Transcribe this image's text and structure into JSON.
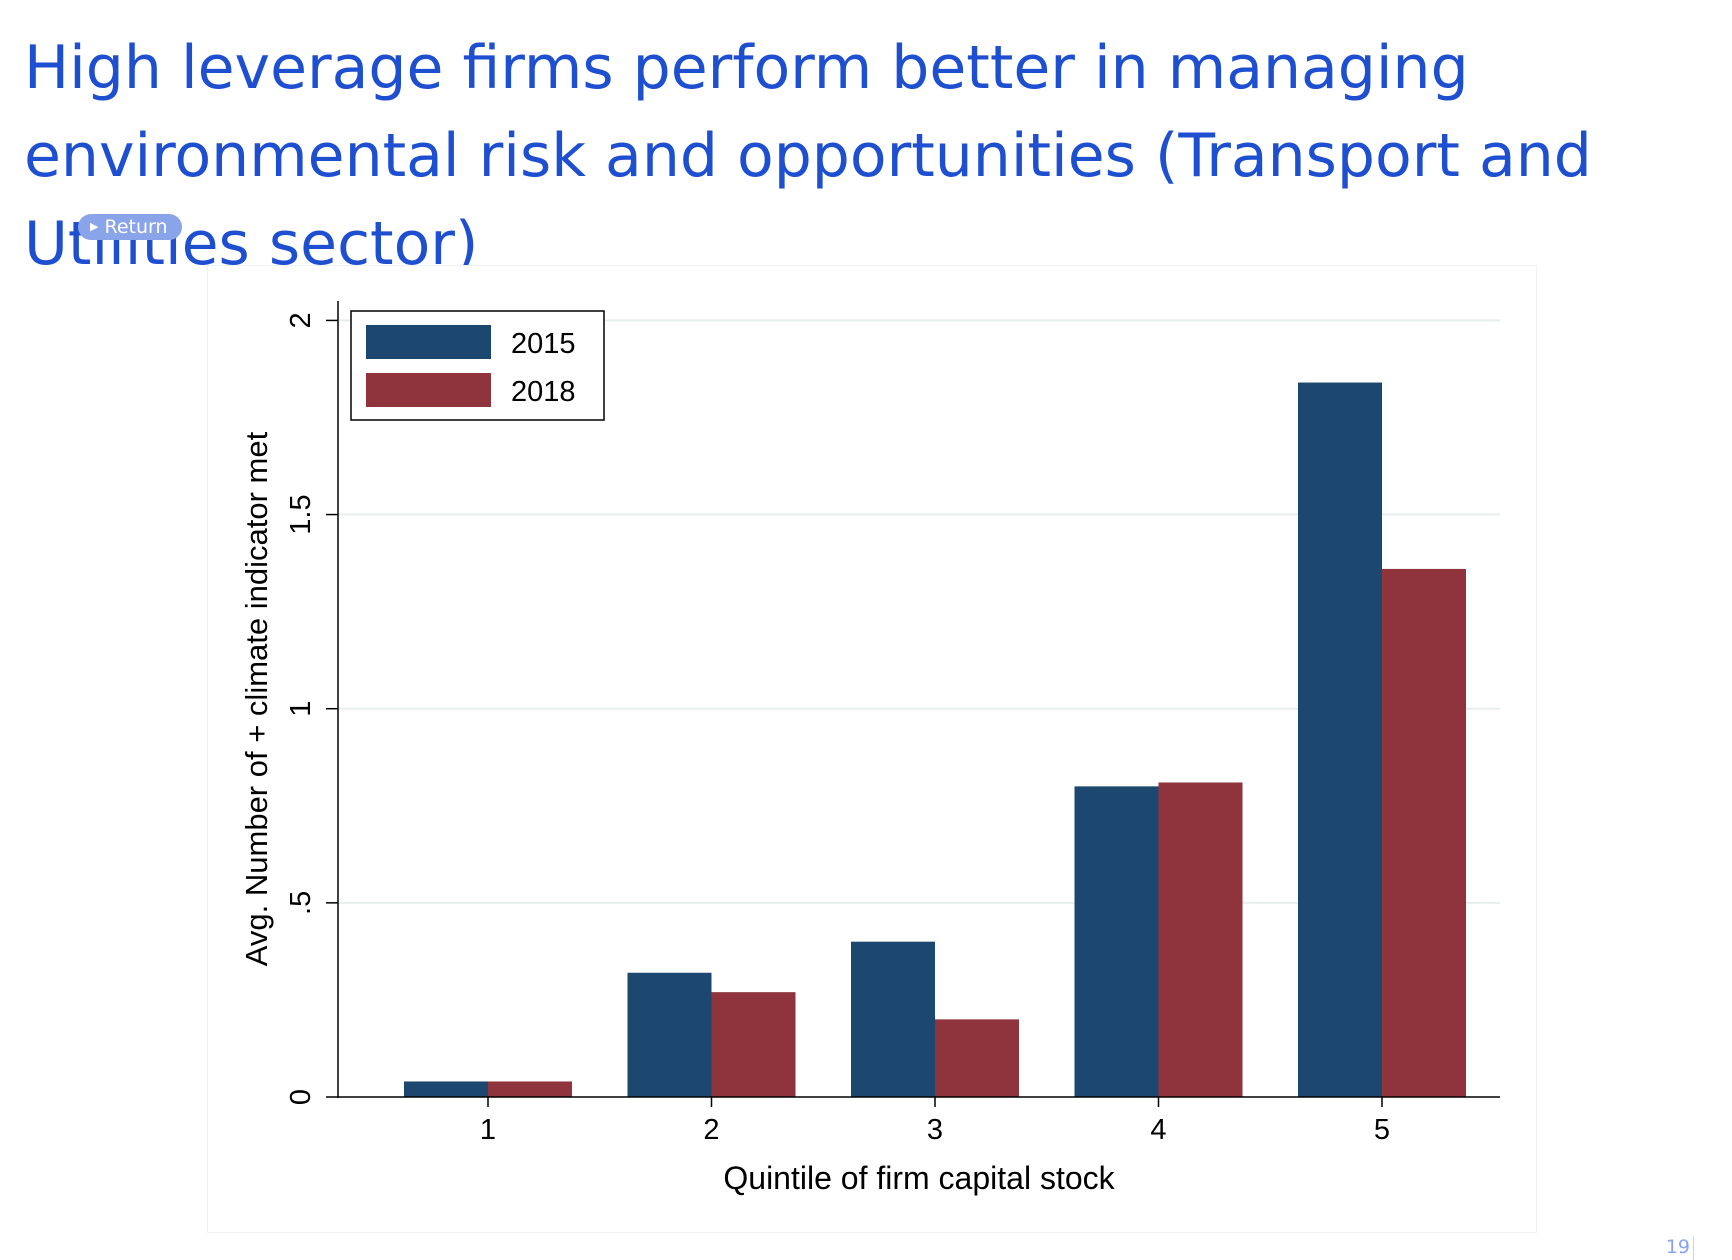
{
  "slide": {
    "title": "High leverage firms perform better in managing environmental risk and opportunities (Transport and Utilities sector)",
    "return_label": "Return",
    "page_number": "19"
  },
  "colors": {
    "title": "#1f4fd1",
    "return_button": "#8aa4ea",
    "series_2015": "#1c476e",
    "series_2018": "#8f343c",
    "gridline": "#e8eeee"
  },
  "chart_data": {
    "type": "bar",
    "title": "",
    "xlabel": "Quintile of firm capital stock",
    "ylabel": "Avg. Number of + climate indicator met",
    "categories": [
      "1",
      "2",
      "3",
      "4",
      "5"
    ],
    "series": [
      {
        "name": "2015",
        "color": "#1c476e",
        "values": [
          0.04,
          0.32,
          0.4,
          0.8,
          1.84
        ]
      },
      {
        "name": "2018",
        "color": "#8f343c",
        "values": [
          0.04,
          0.27,
          0.2,
          0.81,
          1.36
        ]
      }
    ],
    "ylim": [
      0,
      2.05
    ],
    "yticks": [
      {
        "value": 0,
        "label": "0"
      },
      {
        "value": 0.5,
        "label": ".5"
      },
      {
        "value": 1,
        "label": "1"
      },
      {
        "value": 1.5,
        "label": "1.5"
      },
      {
        "value": 2,
        "label": "2"
      }
    ],
    "grid": true,
    "legend_position": "top-left"
  }
}
